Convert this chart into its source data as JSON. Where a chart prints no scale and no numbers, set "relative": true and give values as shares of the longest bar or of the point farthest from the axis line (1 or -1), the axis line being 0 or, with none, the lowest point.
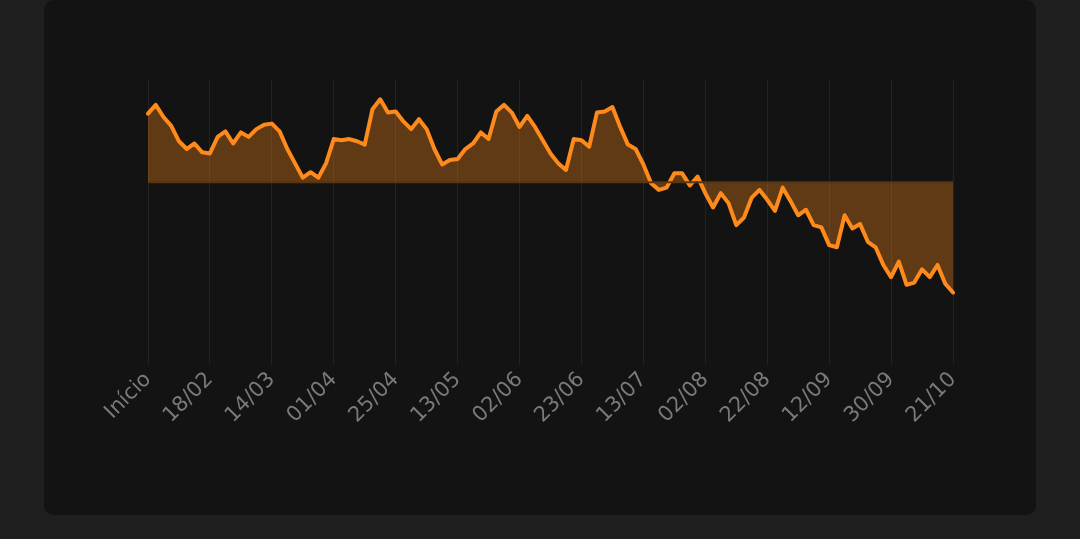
{
  "chart_data": {
    "type": "area",
    "relative": true,
    "ref_lines": [
      {
        "axis": "y",
        "value": 0,
        "color": "#5a3510"
      }
    ],
    "grid": "x",
    "color": "#ff8a1c",
    "categories": [
      "Início",
      null,
      null,
      null,
      null,
      null,
      null,
      null,
      "18/02",
      null,
      null,
      null,
      null,
      null,
      null,
      null,
      "14/03",
      null,
      null,
      null,
      null,
      null,
      null,
      null,
      "01/04",
      null,
      null,
      null,
      null,
      null,
      null,
      null,
      "25/04",
      null,
      null,
      null,
      null,
      null,
      null,
      null,
      "13/05",
      null,
      null,
      null,
      null,
      null,
      null,
      null,
      "02/06",
      null,
      null,
      null,
      null,
      null,
      null,
      null,
      "23/06",
      null,
      null,
      null,
      null,
      null,
      null,
      null,
      "13/07",
      null,
      null,
      null,
      null,
      null,
      null,
      null,
      "02/08",
      null,
      null,
      null,
      null,
      null,
      null,
      null,
      "22/08",
      null,
      null,
      null,
      null,
      null,
      null,
      null,
      "12/09",
      null,
      null,
      null,
      null,
      null,
      null,
      null,
      "30/09",
      null,
      null,
      null,
      null,
      null,
      null,
      null,
      "21/10"
    ],
    "values": [
      0.62,
      0.7,
      0.59,
      0.51,
      0.37,
      0.3,
      0.35,
      0.27,
      0.26,
      0.41,
      0.46,
      0.35,
      0.45,
      0.41,
      0.48,
      0.52,
      0.53,
      0.46,
      0.3,
      0.17,
      0.04,
      0.09,
      0.04,
      0.17,
      0.39,
      0.38,
      0.39,
      0.37,
      0.34,
      0.66,
      0.75,
      0.63,
      0.64,
      0.55,
      0.48,
      0.57,
      0.48,
      0.3,
      0.16,
      0.2,
      0.21,
      0.3,
      0.35,
      0.45,
      0.39,
      0.64,
      0.7,
      0.63,
      0.5,
      0.6,
      0.5,
      0.38,
      0.26,
      0.17,
      0.11,
      0.39,
      0.38,
      0.32,
      0.63,
      0.64,
      0.68,
      0.5,
      0.34,
      0.3,
      0.16,
      -0.01,
      -0.07,
      -0.05,
      0.08,
      0.08,
      -0.03,
      0.05,
      -0.1,
      -0.23,
      -0.1,
      -0.19,
      -0.39,
      -0.32,
      -0.14,
      -0.07,
      -0.16,
      -0.26,
      -0.05,
      -0.17,
      -0.3,
      -0.25,
      -0.39,
      -0.41,
      -0.57,
      -0.59,
      -0.3,
      -0.42,
      -0.38,
      -0.54,
      -0.59,
      -0.75,
      -0.86,
      -0.72,
      -0.93,
      -0.91,
      -0.79,
      -0.86,
      -0.75,
      -0.92,
      -1
    ]
  }
}
